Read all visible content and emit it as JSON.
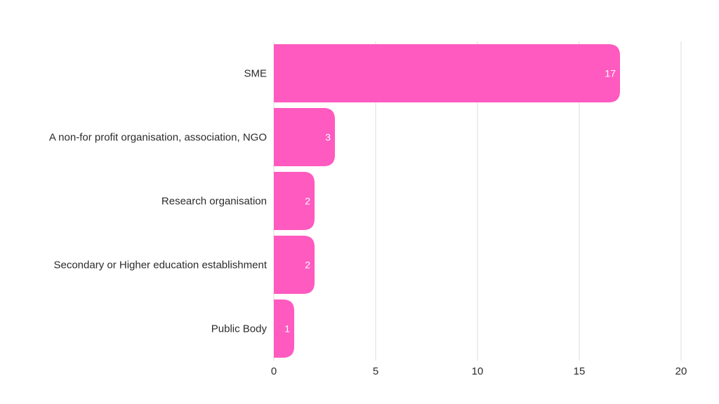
{
  "chart_data": {
    "type": "bar",
    "orientation": "horizontal",
    "categories": [
      "SME",
      "A non-for profit organisation, association, NGO",
      "Research organisation",
      "Secondary or Higher education establishment",
      "Public Body"
    ],
    "values": [
      17,
      3,
      2,
      2,
      1
    ],
    "xlim": [
      0,
      20
    ],
    "xticks": [
      0,
      5,
      10,
      15,
      20
    ],
    "grid": true,
    "legend": "none",
    "title": "",
    "xlabel": "",
    "ylabel": ""
  },
  "colors": {
    "bar": "#ff5ac0",
    "bar_label": "#ffffff",
    "grid": "#dcdcdc",
    "text": "#2b2b2b"
  }
}
